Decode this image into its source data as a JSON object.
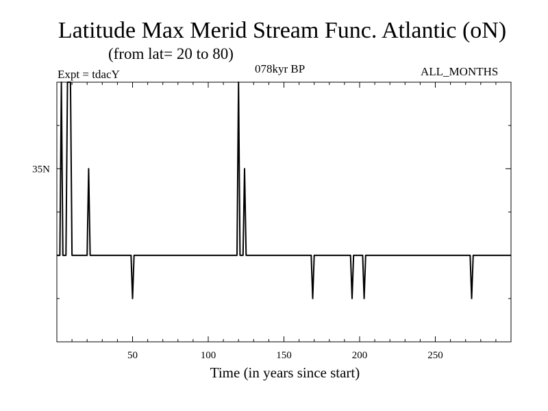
{
  "title": "Latitude Max Merid Stream Func. Atlantic (oN)",
  "subtitle": "(from lat= 20 to 80)",
  "experiment": "Expt = tdacY",
  "period": "078kyr BP",
  "months": "ALL_MONTHS",
  "chart_data": {
    "type": "line",
    "title": "Latitude Max Merid Stream Func. Atlantic (oN)",
    "xlabel": "Time (in years since start)",
    "ylabel": "",
    "xlim": [
      0,
      300
    ],
    "ylim": [
      15,
      45
    ],
    "x_ticks": [
      50,
      100,
      150,
      200,
      250
    ],
    "x_tick_labels": [
      "50",
      "100",
      "150",
      "200",
      "250"
    ],
    "y_ticks": [
      35
    ],
    "y_tick_labels": [
      "35N"
    ],
    "grid": false,
    "series": [
      {
        "color": "#000000",
        "x": [
          0,
          2,
          3,
          4,
          5,
          6,
          7,
          8,
          9,
          10,
          11,
          12,
          20,
          21,
          22,
          23,
          24,
          49,
          50,
          51,
          52,
          53,
          118,
          119,
          120,
          121,
          122,
          123,
          124,
          125,
          126,
          127,
          168,
          169,
          170,
          171,
          194,
          195,
          196,
          197,
          202,
          203,
          204,
          205,
          273,
          274,
          275,
          276,
          300
        ],
        "y": [
          25,
          25,
          45,
          25,
          25,
          25,
          45,
          45,
          45,
          25,
          25,
          25,
          25,
          35,
          25,
          25,
          25,
          25,
          20,
          25,
          25,
          25,
          25,
          25,
          45,
          25,
          25,
          25,
          35,
          25,
          25,
          25,
          25,
          20,
          25,
          25,
          25,
          20,
          25,
          25,
          25,
          20,
          25,
          25,
          25,
          20,
          25,
          25,
          25
        ]
      }
    ]
  }
}
